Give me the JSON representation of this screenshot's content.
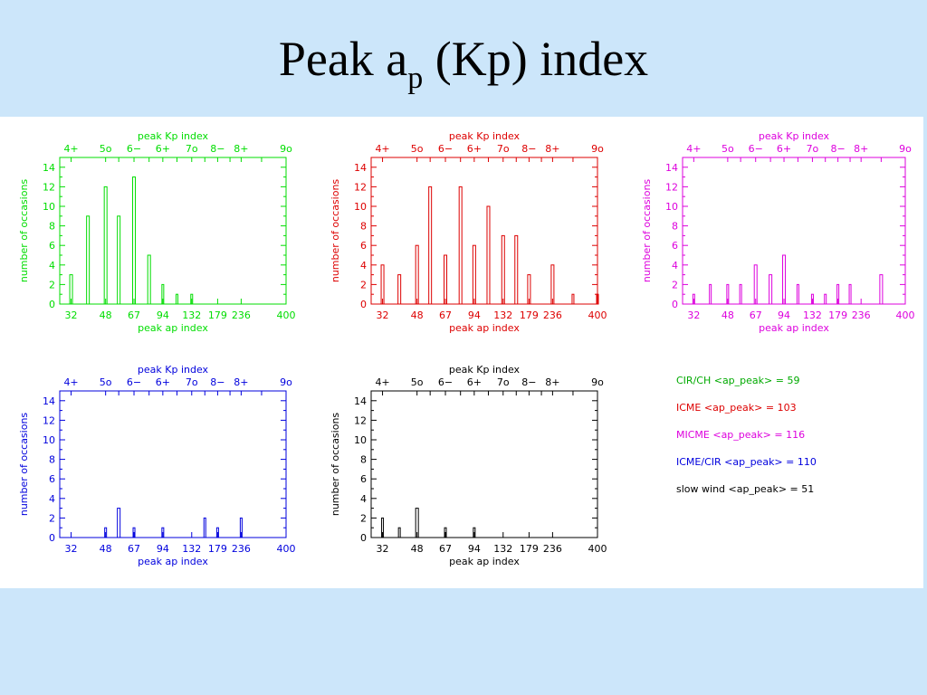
{
  "title": {
    "main": "Peak a",
    "sub": "p",
    "rest": " (Kp) index"
  },
  "axes": {
    "top_label": "peak Kp index",
    "bottom_label": "peak ap index",
    "y_label": "number of occasions",
    "kp_ticks": [
      "4+",
      "5o",
      "6−",
      "6+",
      "7o",
      "8−",
      "8+",
      "9o"
    ],
    "kp_ap_values": [
      32,
      48,
      56,
      67,
      80,
      94,
      111,
      132,
      154,
      179,
      207,
      236,
      300,
      400
    ],
    "kp_label_positions_ap": [
      32,
      48,
      67,
      94,
      132,
      179,
      236,
      400
    ],
    "ap_ticks": [
      "32",
      "48",
      "67",
      "94",
      "132",
      "179",
      "236",
      "400"
    ],
    "ap_tick_values": [
      32,
      48,
      67,
      94,
      132,
      179,
      236,
      400
    ],
    "y_ticks": [
      0,
      2,
      4,
      6,
      8,
      10,
      12,
      14
    ],
    "xlim_ap": [
      28,
      400
    ],
    "ylim": [
      0,
      15
    ]
  },
  "colors": {
    "cir_ch": "#00dd00",
    "icme": "#dd0000",
    "micme": "#dd00dd",
    "icme_cir": "#0000dd",
    "slow_wind": "#000000"
  },
  "legend": [
    {
      "text": "CIR/CH <ap_peak> = 59",
      "color": "#00aa00"
    },
    {
      "text": "ICME <ap_peak> = 103",
      "color": "#dd0000"
    },
    {
      "text": "MICME <ap_peak> = 116",
      "color": "#dd00dd"
    },
    {
      "text": "ICME/CIR <ap_peak> = 110",
      "color": "#0000dd"
    },
    {
      "text": "slow wind <ap_peak> = 51",
      "color": "#000000"
    }
  ],
  "chart_data": [
    {
      "type": "bar",
      "series_key": "cir_ch",
      "x": [
        32,
        39,
        48,
        56,
        67,
        80,
        94,
        111,
        132
      ],
      "values": [
        3,
        9,
        12,
        9,
        13,
        5,
        2,
        1,
        1
      ],
      "xlabel": "peak ap index",
      "x2label": "peak Kp index",
      "ylabel": "number of occasions",
      "ylim": [
        0,
        15
      ]
    },
    {
      "type": "bar",
      "series_key": "icme",
      "x": [
        32,
        39,
        48,
        56,
        67,
        80,
        94,
        111,
        132,
        154,
        179,
        236,
        300,
        400
      ],
      "values": [
        4,
        3,
        6,
        12,
        5,
        12,
        6,
        10,
        7,
        7,
        3,
        4,
        1,
        1
      ],
      "xlabel": "peak ap index",
      "x2label": "peak Kp index",
      "ylabel": "number of occasions",
      "ylim": [
        0,
        15
      ]
    },
    {
      "type": "bar",
      "series_key": "micme",
      "x": [
        32,
        39,
        48,
        56,
        67,
        80,
        94,
        111,
        132,
        154,
        179,
        207,
        300
      ],
      "values": [
        1,
        2,
        2,
        2,
        4,
        3,
        5,
        2,
        1,
        1,
        2,
        2,
        3
      ],
      "xlabel": "peak ap index",
      "x2label": "peak Kp index",
      "ylabel": "number of occasions",
      "ylim": [
        0,
        15
      ]
    },
    {
      "type": "bar",
      "series_key": "icme_cir",
      "x": [
        48,
        56,
        67,
        94,
        154,
        179,
        236
      ],
      "values": [
        1,
        3,
        1,
        1,
        2,
        1,
        2
      ],
      "xlabel": "peak ap index",
      "x2label": "peak Kp index",
      "ylabel": "number of occasions",
      "ylim": [
        0,
        15
      ]
    },
    {
      "type": "bar",
      "series_key": "slow_wind",
      "x": [
        32,
        39,
        48,
        67,
        94
      ],
      "values": [
        2,
        1,
        3,
        1,
        1
      ],
      "xlabel": "peak ap index",
      "x2label": "peak Kp index",
      "ylabel": "number of occasions",
      "ylim": [
        0,
        15
      ]
    }
  ]
}
